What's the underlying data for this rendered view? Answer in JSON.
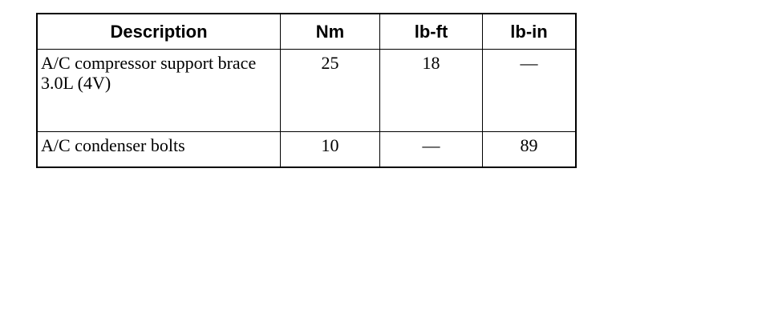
{
  "table": {
    "headers": [
      "Description",
      "Nm",
      "lb-ft",
      "lb-in"
    ],
    "rows": [
      [
        "A/C compressor support brace 3.0L (4V)",
        "25",
        "18",
        "—"
      ],
      [
        "A/C condenser bolts",
        "10",
        "—",
        "89"
      ]
    ]
  }
}
